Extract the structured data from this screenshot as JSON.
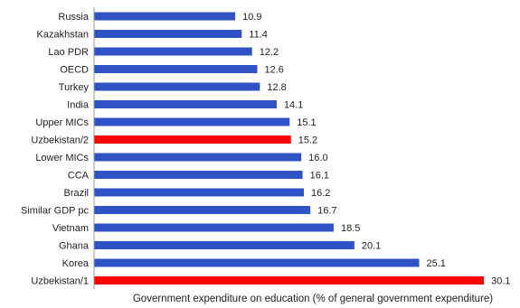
{
  "chart_data": {
    "type": "bar",
    "orientation": "horizontal",
    "title": "",
    "xlabel": "Government expenditure on education (% of general government expenditure)",
    "ylabel": "",
    "grid": false,
    "legend": "none",
    "xlim": [
      0,
      31
    ],
    "categories": [
      "Russia",
      "Kazakhstan",
      "Lao PDR",
      "OECD",
      "Turkey",
      "India",
      "Upper MICs",
      "Uzbekistan/2",
      "Lower MICs",
      "CCA",
      "Brazil",
      "Similar GDP pc",
      "Vietnam",
      "Ghana",
      "Korea",
      "Uzbekistan/1"
    ],
    "values": [
      10.9,
      11.4,
      12.2,
      12.6,
      12.8,
      14.1,
      15.1,
      15.2,
      16.0,
      16.1,
      16.2,
      16.7,
      18.5,
      20.1,
      25.1,
      30.1
    ],
    "value_labels": [
      "10.9",
      "11.4",
      "12.2",
      "12.6",
      "12.8",
      "14.1",
      "15.1",
      "15.2",
      "16.0",
      "16.1",
      "16.2",
      "16.7",
      "18.5",
      "20.1",
      "25.1",
      "30.1"
    ],
    "colors": {
      "default": "#2f52c4",
      "highlight": "#ff0000",
      "axis": "#999999"
    },
    "highlighted": [
      "Uzbekistan/2",
      "Uzbekistan/1"
    ]
  }
}
